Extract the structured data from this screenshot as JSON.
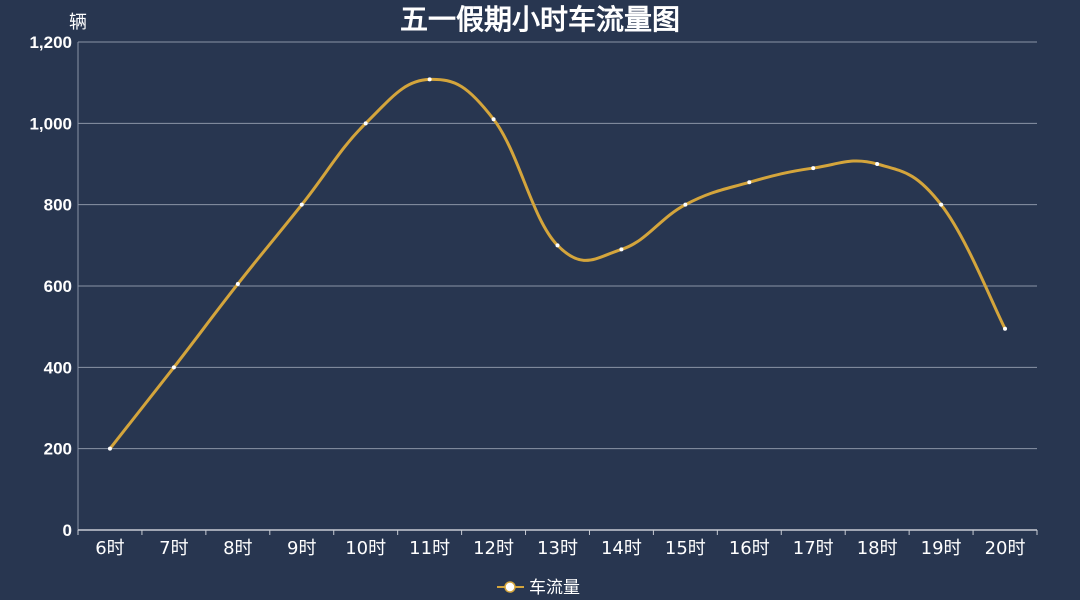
{
  "chart_data": {
    "type": "line",
    "title": "五一假期小时车流量图",
    "ylabel": "辆",
    "xlabel": "",
    "categories": [
      "6时",
      "7时",
      "8时",
      "9时",
      "10时",
      "11时",
      "12时",
      "13时",
      "14时",
      "15时",
      "16时",
      "17时",
      "18时",
      "19时",
      "20时"
    ],
    "series": [
      {
        "name": "车流量",
        "values": [
          200,
          400,
          605,
          800,
          1000,
          1108,
          1010,
          700,
          690,
          800,
          855,
          890,
          900,
          800,
          495
        ],
        "color": "#d4a53c"
      }
    ],
    "ylim": [
      0,
      1200
    ],
    "yticks": [
      0,
      200,
      400,
      600,
      800,
      1000,
      1200
    ],
    "ytick_labels": [
      "0",
      "200",
      "400",
      "600",
      "800",
      "1,000",
      "1,200"
    ],
    "smooth": true,
    "grid": true,
    "legend_position": "bottom-center",
    "background": "#283650"
  }
}
